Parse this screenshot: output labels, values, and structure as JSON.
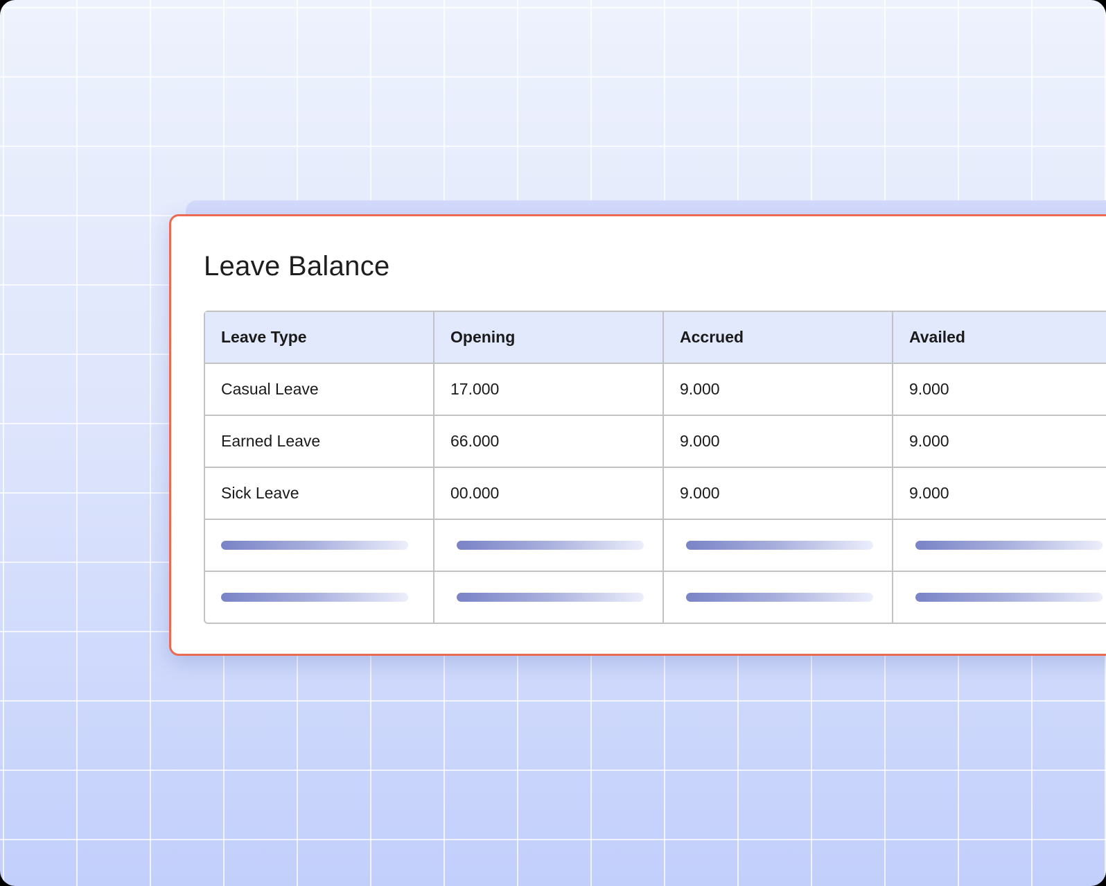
{
  "card": {
    "title": "Leave Balance",
    "accent_border": "#ec6a52",
    "columns": [
      "Leave Type",
      "Opening",
      "Accrued",
      "Availed"
    ],
    "rows": [
      [
        "Casual Leave",
        "17.000",
        "9.000",
        "9.000"
      ],
      [
        "Earned Leave",
        "66.000",
        "9.000",
        "9.000"
      ],
      [
        "Sick Leave",
        "00.000",
        "9.000",
        "9.000"
      ]
    ],
    "placeholder_rows": 2
  }
}
